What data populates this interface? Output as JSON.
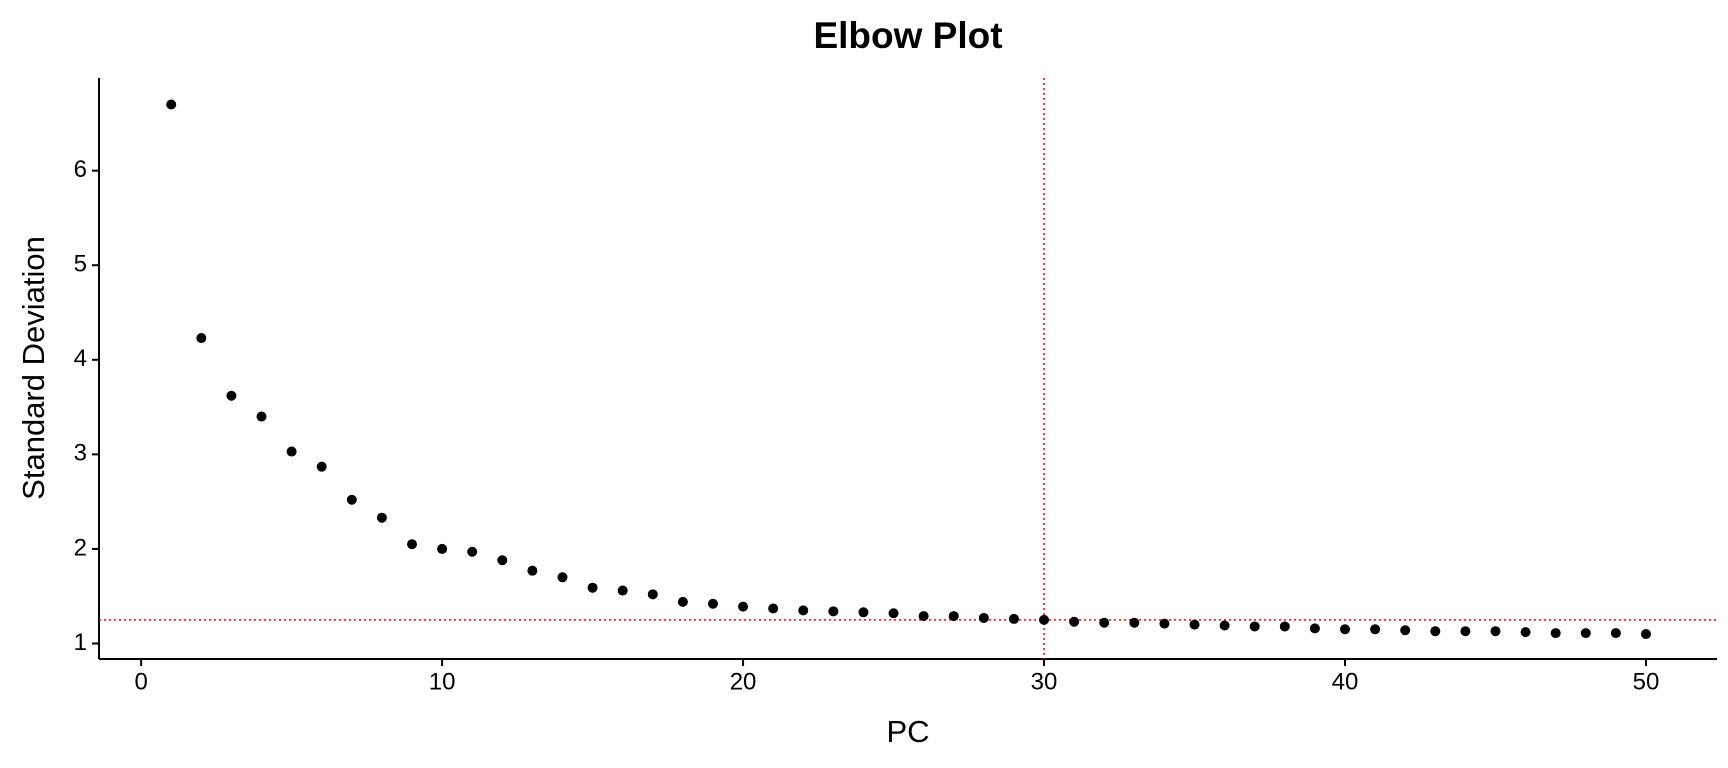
{
  "chart_data": {
    "type": "scatter",
    "title": "Elbow Plot",
    "x_label": "PC",
    "y_label": "Standard Deviation",
    "x": [
      1,
      2,
      3,
      4,
      5,
      6,
      7,
      8,
      9,
      10,
      11,
      12,
      13,
      14,
      15,
      16,
      17,
      18,
      19,
      20,
      21,
      22,
      23,
      24,
      25,
      26,
      27,
      28,
      29,
      30,
      31,
      32,
      33,
      34,
      35,
      36,
      37,
      38,
      39,
      40,
      41,
      42,
      43,
      44,
      45,
      46,
      47,
      48,
      49,
      50
    ],
    "values": [
      6.7,
      4.23,
      3.62,
      3.4,
      3.03,
      2.87,
      2.52,
      2.33,
      2.05,
      2.0,
      1.97,
      1.88,
      1.77,
      1.7,
      1.59,
      1.56,
      1.52,
      1.44,
      1.42,
      1.39,
      1.37,
      1.35,
      1.34,
      1.33,
      1.32,
      1.29,
      1.29,
      1.27,
      1.26,
      1.25,
      1.23,
      1.22,
      1.22,
      1.21,
      1.2,
      1.19,
      1.18,
      1.18,
      1.16,
      1.15,
      1.15,
      1.14,
      1.13,
      1.13,
      1.13,
      1.12,
      1.11,
      1.11,
      1.11,
      1.1
    ],
    "color": "#000000",
    "xlim": [
      -1.4,
      52.36
    ],
    "ylim": [
      0.836,
      6.98
    ],
    "xticks": [
      0,
      10,
      20,
      30,
      40,
      50
    ],
    "yticks": [
      1,
      2,
      3,
      4,
      5,
      6
    ],
    "hline": 1.25,
    "vline": 30,
    "ref_color": "#ff0000",
    "grid": false
  }
}
